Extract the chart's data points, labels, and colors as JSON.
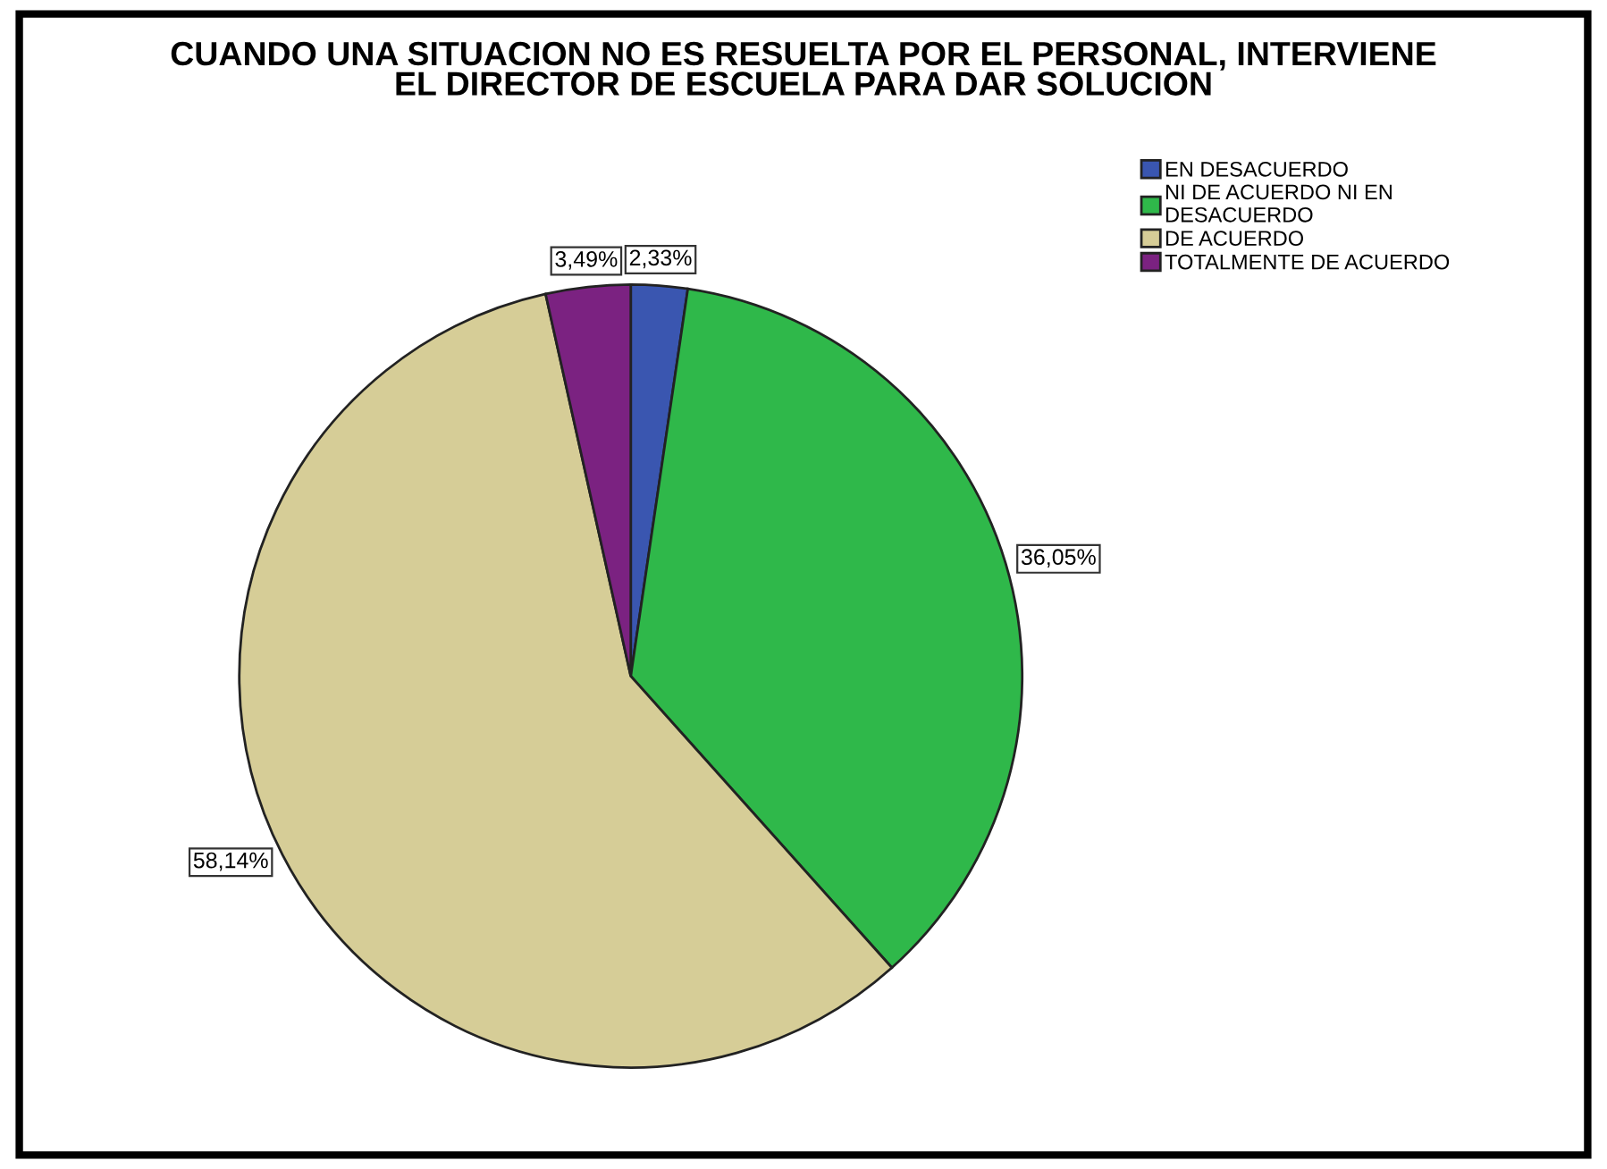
{
  "chart_data": {
    "type": "pie",
    "title": "CUANDO UNA SITUACION NO ES RESUELTA POR EL PERSONAL, INTERVIENE\nEL DIRECTOR DE ESCUELA PARA DAR SOLUCION",
    "categories": [
      "EN DESACUERDO",
      "NI DE ACUERDO NI EN\nDESACUERDO",
      "DE ACUERDO",
      "TOTALMENTE DE ACUERDO"
    ],
    "values": [
      2.33,
      36.05,
      58.14,
      3.49
    ],
    "value_labels": [
      "2,33%",
      "36,05%",
      "58,14%",
      "3,49%"
    ],
    "colors": [
      "#3a56b0",
      "#2fb84a",
      "#d6cd97",
      "#7b2281"
    ],
    "legend": "top right"
  }
}
